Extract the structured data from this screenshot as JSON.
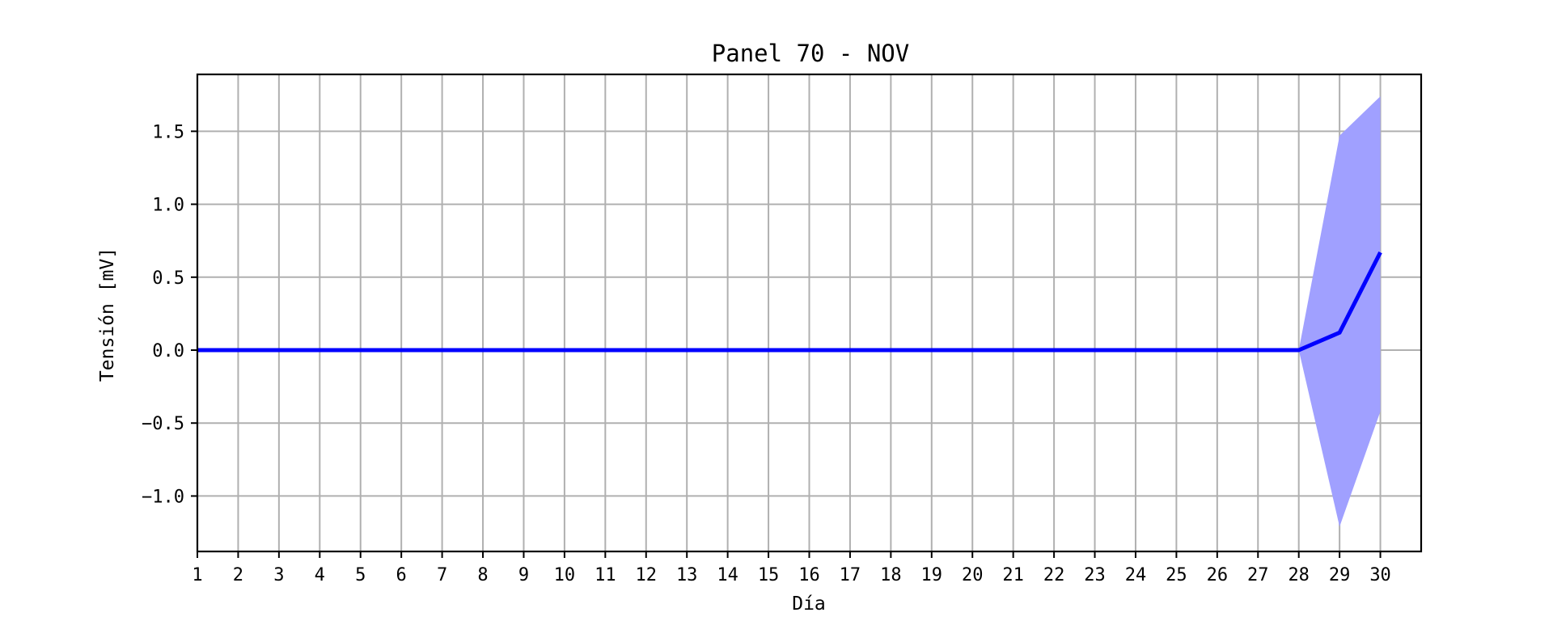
{
  "chart_data": {
    "type": "line",
    "title": "Panel 70 - NOV",
    "xlabel": "Día",
    "ylabel": "Tensión [mV]",
    "x": [
      1,
      2,
      3,
      4,
      5,
      6,
      7,
      8,
      9,
      10,
      11,
      12,
      13,
      14,
      15,
      16,
      17,
      18,
      19,
      20,
      21,
      22,
      23,
      24,
      25,
      26,
      27,
      28,
      29,
      30
    ],
    "xlim": [
      1,
      31
    ],
    "ylim": [
      -1.38,
      1.89
    ],
    "xticks": [
      "1",
      "2",
      "3",
      "4",
      "5",
      "6",
      "7",
      "8",
      "9",
      "10",
      "11",
      "12",
      "13",
      "14",
      "15",
      "16",
      "17",
      "18",
      "19",
      "20",
      "21",
      "22",
      "23",
      "24",
      "25",
      "26",
      "27",
      "28",
      "29",
      "30"
    ],
    "yticks": [
      -1.0,
      -0.5,
      0.0,
      0.5,
      1.0,
      1.5
    ],
    "ytick_labels": [
      "−1.0",
      "−0.5",
      "0.0",
      "0.5",
      "1.0",
      "1.5"
    ],
    "grid": true,
    "series": [
      {
        "color": "#0000ff",
        "values": [
          0,
          0,
          0,
          0,
          0,
          0,
          0,
          0,
          0,
          0,
          0,
          0,
          0,
          0,
          0,
          0,
          0,
          0,
          0,
          0,
          0,
          0,
          0,
          0,
          0,
          0,
          0,
          0,
          0.12,
          0.67
        ]
      }
    ],
    "band": {
      "color": "#a0a0ff",
      "upper": [
        0,
        0,
        0,
        0,
        0,
        0,
        0,
        0,
        0,
        0,
        0,
        0,
        0,
        0,
        0,
        0,
        0,
        0,
        0,
        0,
        0,
        0,
        0,
        0,
        0,
        0,
        0,
        0,
        1.47,
        1.74
      ],
      "lower": [
        0,
        0,
        0,
        0,
        0,
        0,
        0,
        0,
        0,
        0,
        0,
        0,
        0,
        0,
        0,
        0,
        0,
        0,
        0,
        0,
        0,
        0,
        0,
        0,
        0,
        0,
        0,
        0,
        -1.21,
        -0.42
      ]
    }
  }
}
